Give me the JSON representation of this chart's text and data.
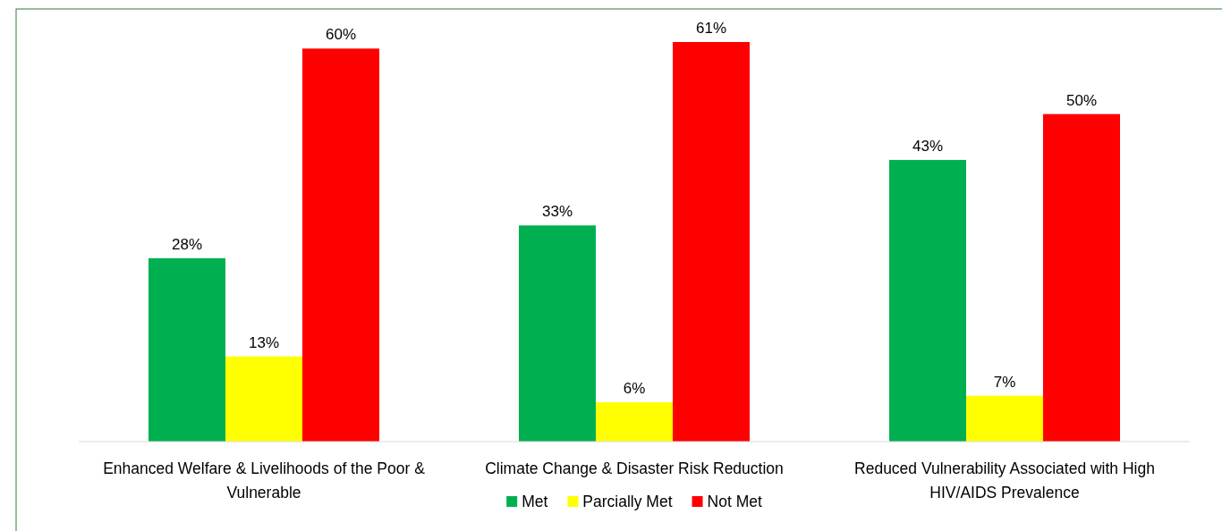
{
  "chart_data": {
    "type": "bar",
    "categories": [
      "Enhanced Welfare & Livelihoods of the Poor & Vulnerable",
      "Climate Change & Disaster Risk Reduction",
      "Reduced Vulnerability Associated with High HIV/AIDS Prevalence"
    ],
    "series": [
      {
        "name": "Met",
        "color": "#00b050",
        "values": [
          28,
          33,
          43
        ],
        "value_labels": [
          "28%",
          "33%",
          "43%"
        ]
      },
      {
        "name": "Parcially Met",
        "color": "#ffff00",
        "values": [
          13,
          6,
          7
        ],
        "value_labels": [
          "13%",
          "6%",
          "7%"
        ]
      },
      {
        "name": "Not Met",
        "color": "#ff0000",
        "values": [
          60,
          61,
          50
        ],
        "value_labels": [
          "60%",
          "61%",
          "50%"
        ]
      }
    ],
    "legend": "bottom"
  }
}
